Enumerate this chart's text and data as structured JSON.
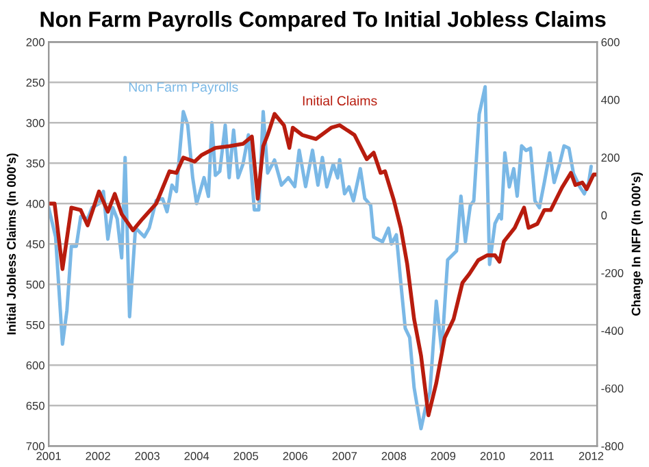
{
  "chart_data": {
    "type": "line",
    "title": "Non Farm Payrolls Compared To Initial Jobless Claims",
    "ylabel": "Initial Jobless Claims (In 000's)",
    "y2label": "Change In NFP (In 000's)",
    "xlim": [
      2001,
      2012.12
    ],
    "xticks": [
      2001,
      2002,
      2003,
      2004,
      2005,
      2006,
      2007,
      2008,
      2009,
      2010,
      2011,
      2012
    ],
    "ylim": [
      700,
      200
    ],
    "yticks": [
      200,
      250,
      300,
      350,
      400,
      450,
      500,
      550,
      600,
      650,
      700
    ],
    "y2lim": [
      -800,
      600
    ],
    "y2ticks": [
      {
        "value": -800,
        "label": "-800"
      },
      {
        "value": -600,
        "label": "-600"
      },
      {
        "value": -400,
        "label": "-400"
      },
      {
        "value": -200,
        "label": "-200"
      },
      0,
      200,
      400,
      600
    ],
    "grid": "y",
    "marker": "none",
    "line_style": "solid",
    "series": [
      {
        "color": "#7ab8e6",
        "axis": "y2",
        "x": [
          2001.0,
          2001.14,
          2001.28,
          2001.37,
          2001.46,
          2001.56,
          2001.65,
          2001.79,
          2001.88,
          2002.02,
          2002.11,
          2002.2,
          2002.3,
          2002.39,
          2002.48,
          2002.55,
          2002.64,
          2002.76,
          2002.94,
          2003.04,
          2003.18,
          2003.31,
          2003.4,
          2003.5,
          2003.59,
          2003.64,
          2003.73,
          2003.82,
          2003.92,
          2004.0,
          2004.15,
          2004.24,
          2004.31,
          2004.38,
          2004.47,
          2004.58,
          2004.66,
          2004.75,
          2004.84,
          2004.94,
          2005.05,
          2005.17,
          2005.26,
          2005.35,
          2005.44,
          2005.58,
          2005.72,
          2005.86,
          2005.99,
          2006.08,
          2006.21,
          2006.35,
          2006.46,
          2006.55,
          2006.64,
          2006.77,
          2006.86,
          2006.9,
          2007.0,
          2007.09,
          2007.18,
          2007.32,
          2007.41,
          2007.53,
          2007.59,
          2007.77,
          2007.89,
          2007.95,
          2008.05,
          2008.14,
          2008.23,
          2008.32,
          2008.41,
          2008.55,
          2008.64,
          2008.73,
          2008.86,
          2008.97,
          2009.09,
          2009.27,
          2009.36,
          2009.45,
          2009.55,
          2009.62,
          2009.73,
          2009.85,
          2009.94,
          2010.05,
          2010.14,
          2010.18,
          2010.25,
          2010.34,
          2010.43,
          2010.5,
          2010.59,
          2010.68,
          2010.77,
          2010.86,
          2010.95,
          2011.05,
          2011.16,
          2011.25,
          2011.36,
          2011.45,
          2011.55,
          2011.64,
          2011.77,
          2011.86,
          2011.95,
          2012.0
        ],
        "values": [
          26,
          -75,
          -447,
          -330,
          -108,
          -108,
          -5,
          -13,
          26,
          40,
          82,
          -83,
          26,
          -13,
          -148,
          200,
          -352,
          -44,
          -75,
          -44,
          51,
          57,
          12,
          104,
          82,
          186,
          359,
          312,
          130,
          40,
          130,
          65,
          320,
          138,
          152,
          312,
          130,
          295,
          130,
          177,
          278,
          18,
          18,
          359,
          146,
          191,
          104,
          130,
          99,
          225,
          99,
          225,
          104,
          200,
          98,
          177,
          129,
          192,
          74,
          98,
          50,
          161,
          58,
          34,
          -76,
          -92,
          -45,
          -100,
          -68,
          -234,
          -392,
          -424,
          -598,
          -740,
          -669,
          -614,
          -298,
          -471,
          -155,
          -124,
          66,
          -92,
          34,
          50,
          350,
          445,
          -171,
          -29,
          2,
          -13,
          216,
          98,
          161,
          66,
          240,
          224,
          232,
          50,
          26,
          113,
          216,
          113,
          177,
          240,
          232,
          145,
          98,
          74,
          113,
          169
        ]
      },
      {
        "color": "#b81c0e",
        "axis": "y",
        "x": [
          2001.0,
          2001.12,
          2001.28,
          2001.46,
          2001.65,
          2001.79,
          2002.02,
          2002.2,
          2002.34,
          2002.48,
          2002.71,
          2002.9,
          2003.18,
          2003.45,
          2003.59,
          2003.73,
          2003.96,
          2004.1,
          2004.38,
          2004.66,
          2004.94,
          2005.12,
          2005.24,
          2005.35,
          2005.44,
          2005.58,
          2005.77,
          2005.88,
          2005.95,
          2006.14,
          2006.42,
          2006.73,
          2006.9,
          2007.2,
          2007.45,
          2007.59,
          2007.73,
          2007.82,
          2008.0,
          2008.14,
          2008.27,
          2008.41,
          2008.55,
          2008.7,
          2008.86,
          2009.03,
          2009.21,
          2009.39,
          2009.53,
          2009.71,
          2009.89,
          2010.05,
          2010.14,
          2010.23,
          2010.45,
          2010.64,
          2010.73,
          2010.91,
          2011.05,
          2011.18,
          2011.41,
          2011.59,
          2011.68,
          2011.82,
          2011.91,
          2012.05,
          2012.12
        ],
        "values": [
          400,
          400,
          481,
          405,
          408,
          427,
          385,
          410,
          388,
          413,
          433,
          419,
          400,
          360,
          362,
          343,
          348,
          340,
          331,
          329,
          326,
          317,
          394,
          329,
          315,
          289,
          303,
          331,
          306,
          315,
          320,
          306,
          303,
          315,
          345,
          337,
          362,
          360,
          396,
          430,
          475,
          543,
          588,
          662,
          622,
          566,
          543,
          498,
          487,
          470,
          464,
          464,
          472,
          447,
          430,
          405,
          430,
          425,
          408,
          408,
          380,
          362,
          377,
          374,
          382,
          364,
          364
        ]
      }
    ],
    "annotations": [
      {
        "text": "Non Farm Payrolls",
        "x": 2003.73,
        "y": 286
      },
      {
        "text": "Initial Claims",
        "x": 2006.9,
        "y": 303
      }
    ]
  }
}
